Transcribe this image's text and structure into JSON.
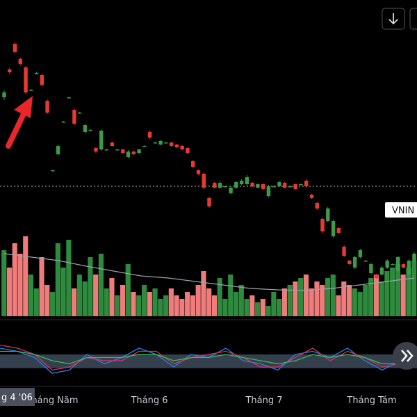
{
  "chart_data": {
    "type": "candlestick",
    "ylim": [
      0,
      460
    ],
    "up_color": "#3d9a46",
    "down_color": "#e8392e",
    "open": [
      320,
      360,
      397,
      375,
      363,
      330,
      355,
      352,
      315,
      215,
      238,
      285,
      320,
      302,
      298,
      270,
      273,
      247,
      245,
      245,
      255,
      245,
      245,
      234,
      242,
      240,
      250,
      270,
      255,
      252,
      255,
      255,
      252,
      250,
      247,
      228,
      215,
      210,
      175,
      197,
      190,
      192,
      182,
      190,
      195,
      195,
      197,
      190,
      195,
      178,
      192,
      192,
      197,
      192,
      195,
      195,
      200,
      180,
      168,
      145,
      142,
      120,
      132,
      105,
      85,
      75,
      90,
      85,
      67,
      65,
      65,
      75,
      80,
      70,
      80,
      65,
      85
    ],
    "close": [
      327,
      356,
      385,
      368,
      327,
      331,
      355,
      338,
      298,
      215,
      250,
      285,
      320,
      282,
      298,
      280,
      273,
      242,
      272,
      245,
      250,
      245,
      240,
      242,
      238,
      245,
      250,
      262,
      255,
      257,
      255,
      250,
      248,
      245,
      240,
      220,
      210,
      190,
      163,
      190,
      197,
      192,
      190,
      198,
      200,
      205,
      192,
      195,
      188,
      192,
      192,
      198,
      190,
      192,
      188,
      195,
      192,
      175,
      160,
      127,
      160,
      142,
      125,
      92,
      80,
      90,
      100,
      85,
      80,
      60,
      75,
      85,
      80,
      90,
      75,
      85,
      95
    ],
    "high": [
      330,
      362,
      400,
      377,
      365,
      332,
      357,
      354,
      317,
      216,
      252,
      286,
      321,
      304,
      299,
      282,
      274,
      248,
      274,
      246,
      256,
      246,
      246,
      244,
      243,
      246,
      251,
      272,
      256,
      259,
      256,
      256,
      253,
      251,
      248,
      230,
      216,
      212,
      177,
      198,
      199,
      193,
      192,
      200,
      202,
      208,
      198,
      196,
      196,
      194,
      193,
      200,
      198,
      193,
      196,
      196,
      202,
      181,
      170,
      147,
      162,
      144,
      133,
      107,
      86,
      92,
      102,
      86,
      82,
      66,
      77,
      87,
      81,
      92,
      81,
      87,
      97
    ],
    "low": [
      316,
      354,
      383,
      366,
      325,
      329,
      353,
      336,
      296,
      214,
      236,
      284,
      319,
      280,
      297,
      268,
      272,
      240,
      243,
      244,
      249,
      244,
      238,
      232,
      237,
      238,
      249,
      260,
      254,
      251,
      254,
      249,
      247,
      244,
      238,
      218,
      208,
      188,
      161,
      189,
      188,
      191,
      180,
      188,
      194,
      193,
      191,
      189,
      186,
      176,
      191,
      191,
      189,
      191,
      187,
      194,
      190,
      174,
      158,
      125,
      140,
      118,
      124,
      90,
      79,
      73,
      88,
      84,
      65,
      59,
      63,
      73,
      79,
      68,
      74,
      63,
      83
    ],
    "price_line": 192,
    "price_label": "VNIN",
    "volume": {
      "ylim": [
        0,
        200
      ],
      "up_color": "#2e8b3e",
      "down_color": "#ef7b7b",
      "values": [
        95,
        70,
        105,
        90,
        115,
        60,
        40,
        85,
        45,
        35,
        105,
        70,
        110,
        40,
        60,
        50,
        85,
        60,
        90,
        40,
        55,
        30,
        45,
        75,
        35,
        30,
        45,
        35,
        40,
        25,
        30,
        40,
        30,
        25,
        35,
        30,
        45,
        65,
        40,
        30,
        55,
        25,
        60,
        35,
        45,
        25,
        30,
        20,
        25,
        15,
        35,
        25,
        40,
        45,
        50,
        55,
        60,
        40,
        50,
        45,
        55,
        60,
        30,
        50,
        45,
        40,
        35,
        45,
        55,
        60,
        50,
        65,
        70,
        75,
        60,
        70,
        80
      ],
      "ma": [
        90,
        85,
        80,
        72,
        65,
        58,
        55,
        50,
        45,
        40,
        38,
        37,
        40,
        45,
        50,
        55
      ],
      "ma_color": "#9aa3ad"
    },
    "oscillator": {
      "ylim": [
        0,
        100
      ],
      "band": [
        28,
        50
      ],
      "band_color": "#3a4756",
      "series": [
        {
          "color": "#2f7ff0",
          "values": [
            60,
            55,
            45,
            20,
            25,
            50,
            35,
            45,
            60,
            50,
            30,
            50,
            45,
            60,
            40,
            35,
            25,
            50,
            55,
            45,
            60,
            40,
            25,
            40,
            55
          ]
        },
        {
          "color": "#e0306a",
          "values": [
            65,
            60,
            50,
            25,
            30,
            45,
            40,
            40,
            55,
            55,
            35,
            45,
            50,
            55,
            45,
            30,
            30,
            45,
            60,
            40,
            55,
            45,
            30,
            35,
            50
          ]
        },
        {
          "color": "#36c24a",
          "values": [
            55,
            55,
            50,
            40,
            35,
            45,
            45,
            45,
            50,
            50,
            40,
            45,
            45,
            50,
            45,
            40,
            35,
            40,
            50,
            45,
            50,
            45,
            35,
            35,
            45
          ]
        }
      ]
    },
    "x_labels": [
      "Tháng Năm",
      "Tháng 6",
      "Tháng 7",
      "Tháng Tám"
    ],
    "crosshair_label": "g 4 '06"
  }
}
